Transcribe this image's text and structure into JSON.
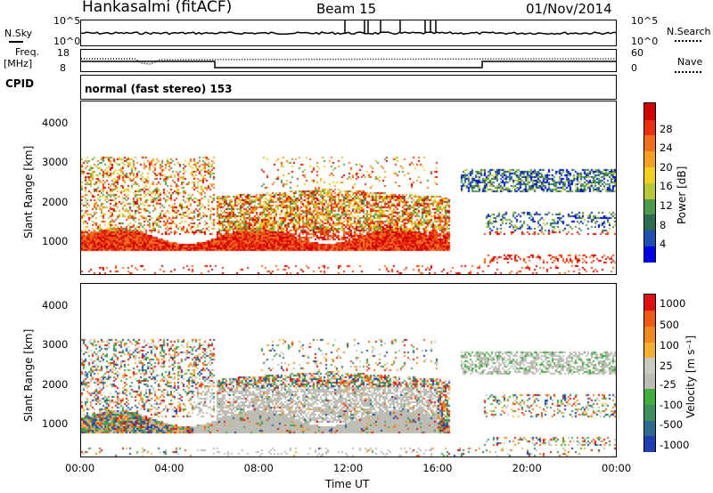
{
  "header": {
    "station": "Hankasalmi (fitACF)",
    "beam": "Beam 15",
    "date": "01/Nov/2014"
  },
  "noise_panel": {
    "left_label": "N.Sky",
    "right_label": "N.Search",
    "ticks_left": [
      "10^5",
      "10^0"
    ],
    "ticks_right": [
      "10^5",
      "10^0"
    ]
  },
  "freq_panel": {
    "left_label_line1": "Freq.",
    "left_label_line2": "[MHz]",
    "right_label": "Nave",
    "ticks_left": [
      "18",
      "8"
    ],
    "ticks_right": [
      "60",
      "0"
    ]
  },
  "cpid": {
    "label": "CPID",
    "mode_text": "normal (fast stereo) 153"
  },
  "time_axis": {
    "ticks": [
      "00:00",
      "04:00",
      "08:00",
      "12:00",
      "16:00",
      "20:00",
      "00:00"
    ],
    "label": "Time UT"
  },
  "chart_data": [
    {
      "type": "heatmap",
      "name": "power",
      "ylabel": "Slant Range [km]",
      "yticks": [
        1000,
        2000,
        3000,
        4000
      ],
      "ylim": [
        200,
        4600
      ],
      "xlim_hours": [
        0,
        24
      ],
      "colorbar": {
        "label": "Power [dB]",
        "ticks": [
          "28",
          "24",
          "20",
          "16",
          "12",
          "8",
          "4"
        ],
        "colors": [
          "#0000e6",
          "#1f4fb0",
          "#2f6a52",
          "#4f9a4f",
          "#b6c93a",
          "#f0d020",
          "#f5a020",
          "#f07020",
          "#e83010",
          "#d00000"
        ]
      }
    },
    {
      "type": "heatmap",
      "name": "velocity",
      "ylabel": "Slant Range [km]",
      "yticks": [
        1000,
        2000,
        3000,
        4000
      ],
      "ylim": [
        200,
        4600
      ],
      "xlim_hours": [
        0,
        24
      ],
      "colorbar": {
        "label": "Velocity [m s⁻¹]",
        "ticks": [
          "1000",
          "500",
          "100",
          "25",
          "-25",
          "-100",
          "-500",
          "-1000"
        ],
        "colors": [
          "#1f3fb0",
          "#2f6a8f",
          "#3d8f5f",
          "#3fae3f",
          "#bdbdb5",
          "#c9c9c0",
          "#f4b030",
          "#f08a20",
          "#f05a10",
          "#e01010"
        ]
      }
    }
  ]
}
